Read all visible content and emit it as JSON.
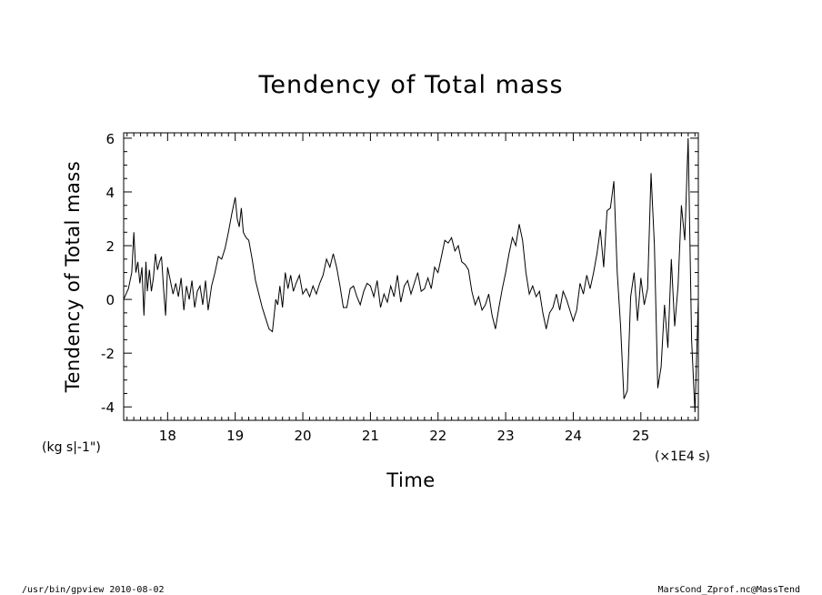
{
  "chart_data": {
    "type": "line",
    "title": "Tendency of Total mass",
    "xlabel": "Time",
    "ylabel": "Tendency of Total mass",
    "y_units": "(kg s|-1\")",
    "x_units": "(×1E4 s)",
    "xlim": [
      17.35,
      25.85
    ],
    "ylim": [
      -4.5,
      6.2
    ],
    "x_ticks": [
      18,
      19,
      20,
      21,
      22,
      23,
      24,
      25
    ],
    "x_tick_labels": [
      "18",
      "19",
      "20",
      "21",
      "22",
      "23",
      "24",
      "25"
    ],
    "y_ticks": [
      -4,
      -2,
      0,
      2,
      4,
      6
    ],
    "y_tick_labels": [
      "-4",
      "-2",
      "0",
      "2",
      "4",
      "6"
    ],
    "grid": false,
    "series": [
      {
        "x": [
          17.35,
          17.42,
          17.47,
          17.5,
          17.53,
          17.56,
          17.59,
          17.62,
          17.65,
          17.68,
          17.7,
          17.73,
          17.76,
          17.79,
          17.82,
          17.85,
          17.88,
          17.91,
          17.94,
          17.97,
          18.0,
          18.04,
          18.08,
          18.12,
          18.16,
          18.2,
          18.24,
          18.28,
          18.32,
          18.36,
          18.4,
          18.44,
          18.48,
          18.52,
          18.56,
          18.6,
          18.65,
          18.7,
          18.75,
          18.8,
          18.85,
          18.9,
          18.95,
          19.0,
          19.03,
          19.06,
          19.09,
          19.12,
          19.16,
          19.2,
          19.25,
          19.3,
          19.35,
          19.4,
          19.45,
          19.5,
          19.55,
          19.6,
          19.63,
          19.66,
          19.7,
          19.74,
          19.78,
          19.82,
          19.86,
          19.9,
          19.95,
          20.0,
          20.05,
          20.1,
          20.15,
          20.2,
          20.25,
          20.3,
          20.35,
          20.4,
          20.45,
          20.5,
          20.55,
          20.6,
          20.65,
          20.7,
          20.75,
          20.8,
          20.85,
          20.9,
          20.95,
          21.0,
          21.05,
          21.1,
          21.15,
          21.2,
          21.25,
          21.3,
          21.35,
          21.4,
          21.45,
          21.5,
          21.55,
          21.6,
          21.65,
          21.7,
          21.75,
          21.8,
          21.85,
          21.9,
          21.95,
          22.0,
          22.05,
          22.1,
          22.15,
          22.2,
          22.25,
          22.3,
          22.35,
          22.4,
          22.45,
          22.5,
          22.55,
          22.6,
          22.65,
          22.7,
          22.75,
          22.8,
          22.85,
          22.9,
          22.95,
          23.0,
          23.05,
          23.1,
          23.15,
          23.2,
          23.25,
          23.3,
          23.35,
          23.4,
          23.45,
          23.5,
          23.55,
          23.6,
          23.65,
          23.7,
          23.75,
          23.8,
          23.85,
          23.9,
          23.95,
          24.0,
          24.05,
          24.1,
          24.15,
          24.2,
          24.25,
          24.3,
          24.35,
          24.4,
          24.45,
          24.5,
          24.55,
          24.6,
          24.65,
          24.7,
          24.75,
          24.8,
          24.85,
          24.9,
          24.95,
          25.0,
          25.05,
          25.1,
          25.15,
          25.2,
          25.25,
          25.3,
          25.35,
          25.4,
          25.45,
          25.5,
          25.55,
          25.6,
          25.65,
          25.7,
          25.75,
          25.8,
          25.85
        ],
        "y": [
          0.0,
          0.4,
          1.0,
          2.5,
          1.0,
          1.4,
          0.6,
          1.2,
          -0.6,
          1.4,
          0.3,
          1.1,
          0.3,
          0.8,
          1.7,
          1.1,
          1.4,
          1.6,
          0.4,
          -0.6,
          1.2,
          0.7,
          0.2,
          0.6,
          0.1,
          0.8,
          -0.4,
          0.5,
          0.0,
          0.7,
          -0.3,
          0.3,
          0.5,
          -0.2,
          0.7,
          -0.4,
          0.5,
          1.0,
          1.6,
          1.5,
          1.9,
          2.5,
          3.2,
          3.8,
          3.0,
          2.7,
          3.4,
          2.5,
          2.3,
          2.2,
          1.5,
          0.7,
          0.2,
          -0.3,
          -0.7,
          -1.1,
          -1.2,
          0.0,
          -0.2,
          0.5,
          -0.3,
          1.0,
          0.4,
          0.9,
          0.3,
          0.6,
          0.9,
          0.2,
          0.4,
          0.1,
          0.5,
          0.2,
          0.6,
          0.9,
          1.5,
          1.2,
          1.7,
          1.2,
          0.5,
          -0.3,
          -0.3,
          0.4,
          0.5,
          0.1,
          -0.2,
          0.3,
          0.6,
          0.5,
          0.1,
          0.7,
          -0.3,
          0.2,
          -0.1,
          0.5,
          0.1,
          0.9,
          -0.1,
          0.5,
          0.7,
          0.2,
          0.6,
          1.0,
          0.3,
          0.4,
          0.8,
          0.4,
          1.2,
          1.0,
          1.6,
          2.2,
          2.1,
          2.3,
          1.8,
          2.0,
          1.4,
          1.3,
          1.1,
          0.3,
          -0.2,
          0.1,
          -0.4,
          -0.2,
          0.2,
          -0.6,
          -1.1,
          -0.3,
          0.4,
          1.0,
          1.7,
          2.3,
          2.0,
          2.8,
          2.2,
          1.0,
          0.2,
          0.5,
          0.1,
          0.3,
          -0.5,
          -1.1,
          -0.5,
          -0.3,
          0.2,
          -0.4,
          0.3,
          0.0,
          -0.4,
          -0.8,
          -0.4,
          0.6,
          0.2,
          0.9,
          0.4,
          1.0,
          1.7,
          2.6,
          1.2,
          3.3,
          3.4,
          4.4,
          1.0,
          -1.0,
          -3.7,
          -3.4,
          0.1,
          1.0,
          -0.8,
          0.8,
          -0.2,
          0.4,
          4.7,
          2.0,
          -3.3,
          -2.5,
          -0.2,
          -1.8,
          1.5,
          -1.0,
          0.5,
          3.5,
          2.2,
          6.0,
          -1.5,
          -4.2,
          0.0
        ]
      }
    ]
  },
  "footer": {
    "left": "/usr/bin/gpview  2010-08-02",
    "right": "MarsCond_Zprof.nc@MassTend"
  }
}
